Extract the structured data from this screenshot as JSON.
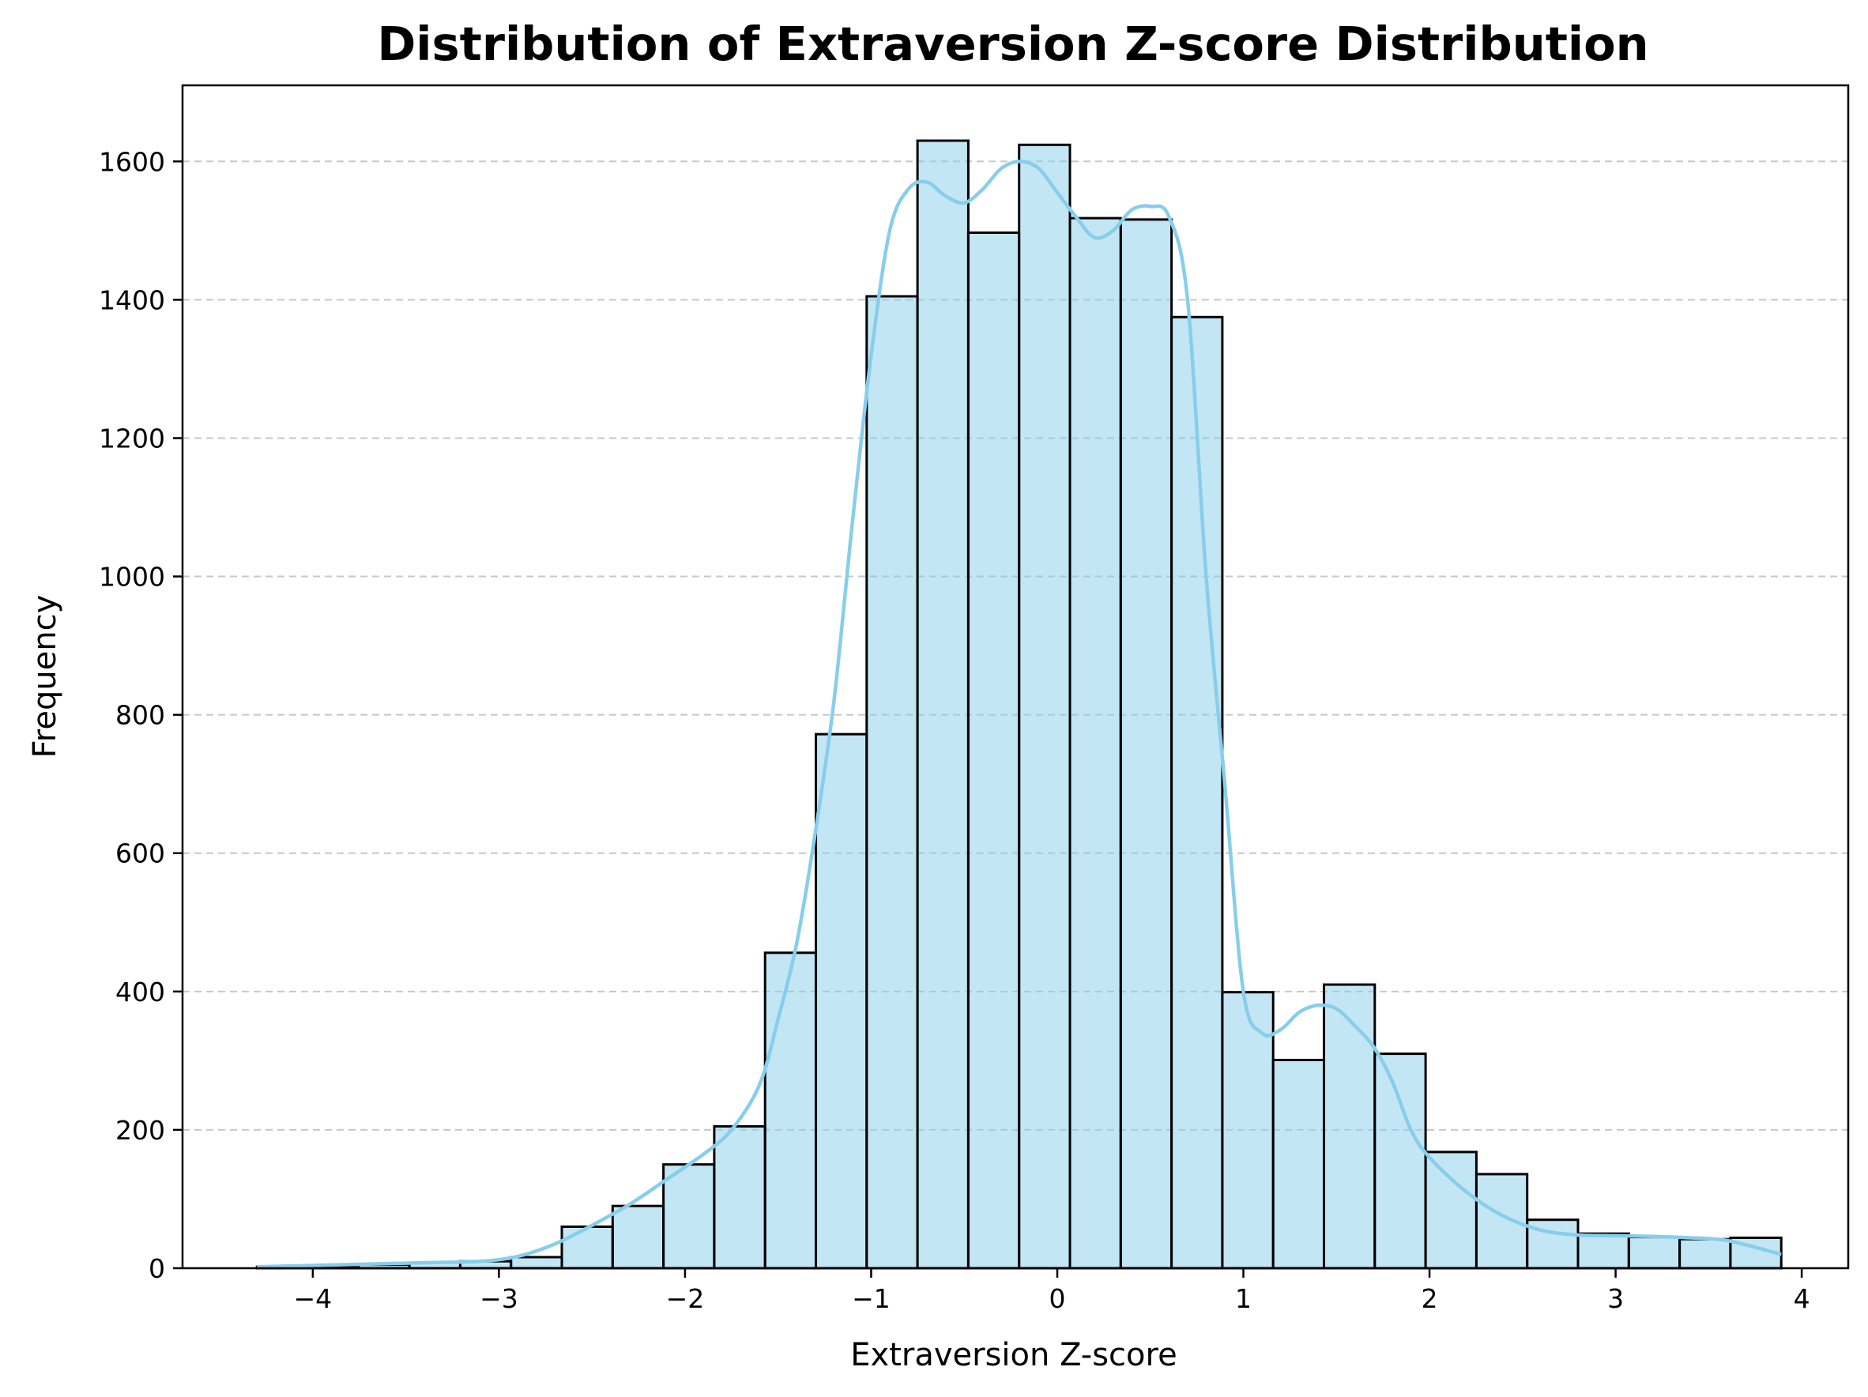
{
  "chart_data": {
    "type": "bar",
    "title": "Distribution of Extraversion Z-score Distribution",
    "xlabel": "Extraversion Z-score",
    "ylabel": "Frequency",
    "xlim": [
      -4.7,
      4.25
    ],
    "ylim": [
      0,
      1710
    ],
    "x_ticks": [
      -4,
      -3,
      -2,
      -1,
      0,
      1,
      2,
      3,
      4
    ],
    "x_tick_labels": [
      "−4",
      "−3",
      "−2",
      "−1",
      "0",
      "1",
      "2",
      "3",
      "4"
    ],
    "y_ticks": [
      0,
      200,
      400,
      600,
      800,
      1000,
      1200,
      1400,
      1600
    ],
    "y_tick_labels": [
      "0",
      "200",
      "400",
      "600",
      "800",
      "1000",
      "1200",
      "1400",
      "1600"
    ],
    "grid": "y-dashed",
    "bar_color": "#87ceeb",
    "kde_color": "#87ceeb",
    "bin_edges": [
      -4.3,
      -4.027,
      -3.754,
      -3.481,
      -3.208,
      -2.935,
      -2.662,
      -2.389,
      -2.116,
      -1.843,
      -1.57,
      -1.297,
      -1.024,
      -0.751,
      -0.478,
      -0.205,
      0.068,
      0.341,
      0.614,
      0.887,
      1.16,
      1.433,
      1.706,
      1.979,
      2.252,
      2.525,
      2.798,
      3.071,
      3.344,
      3.617,
      3.89
    ],
    "values": [
      2,
      3,
      5,
      8,
      10,
      16,
      60,
      90,
      150,
      205,
      456,
      772,
      1405,
      1630,
      1497,
      1624,
      1518,
      1516,
      1375,
      399,
      301,
      410,
      310,
      168,
      136,
      70,
      50,
      45,
      42,
      44
    ],
    "kde": {
      "x": [
        -4.3,
        -4.0,
        -3.7,
        -3.4,
        -3.1,
        -2.9,
        -2.7,
        -2.5,
        -2.3,
        -2.1,
        -1.9,
        -1.75,
        -1.6,
        -1.5,
        -1.4,
        -1.3,
        -1.2,
        -1.1,
        -1.0,
        -0.9,
        -0.8,
        -0.7,
        -0.6,
        -0.5,
        -0.4,
        -0.3,
        -0.2,
        -0.1,
        0.0,
        0.1,
        0.2,
        0.3,
        0.4,
        0.5,
        0.6,
        0.7,
        0.8,
        0.9,
        1.0,
        1.1,
        1.2,
        1.3,
        1.4,
        1.5,
        1.6,
        1.7,
        1.8,
        1.9,
        2.0,
        2.2,
        2.4,
        2.6,
        2.8,
        3.0,
        3.2,
        3.4,
        3.6,
        3.89
      ],
      "y": [
        2,
        4,
        6,
        8,
        10,
        17,
        35,
        62,
        92,
        128,
        165,
        200,
        265,
        360,
        470,
        630,
        820,
        1080,
        1320,
        1500,
        1560,
        1570,
        1550,
        1540,
        1560,
        1590,
        1600,
        1590,
        1555,
        1520,
        1490,
        1500,
        1530,
        1535,
        1520,
        1400,
        1000,
        700,
        400,
        340,
        345,
        370,
        380,
        375,
        350,
        320,
        270,
        200,
        160,
        110,
        75,
        55,
        48,
        47,
        46,
        44,
        40,
        20
      ]
    }
  }
}
